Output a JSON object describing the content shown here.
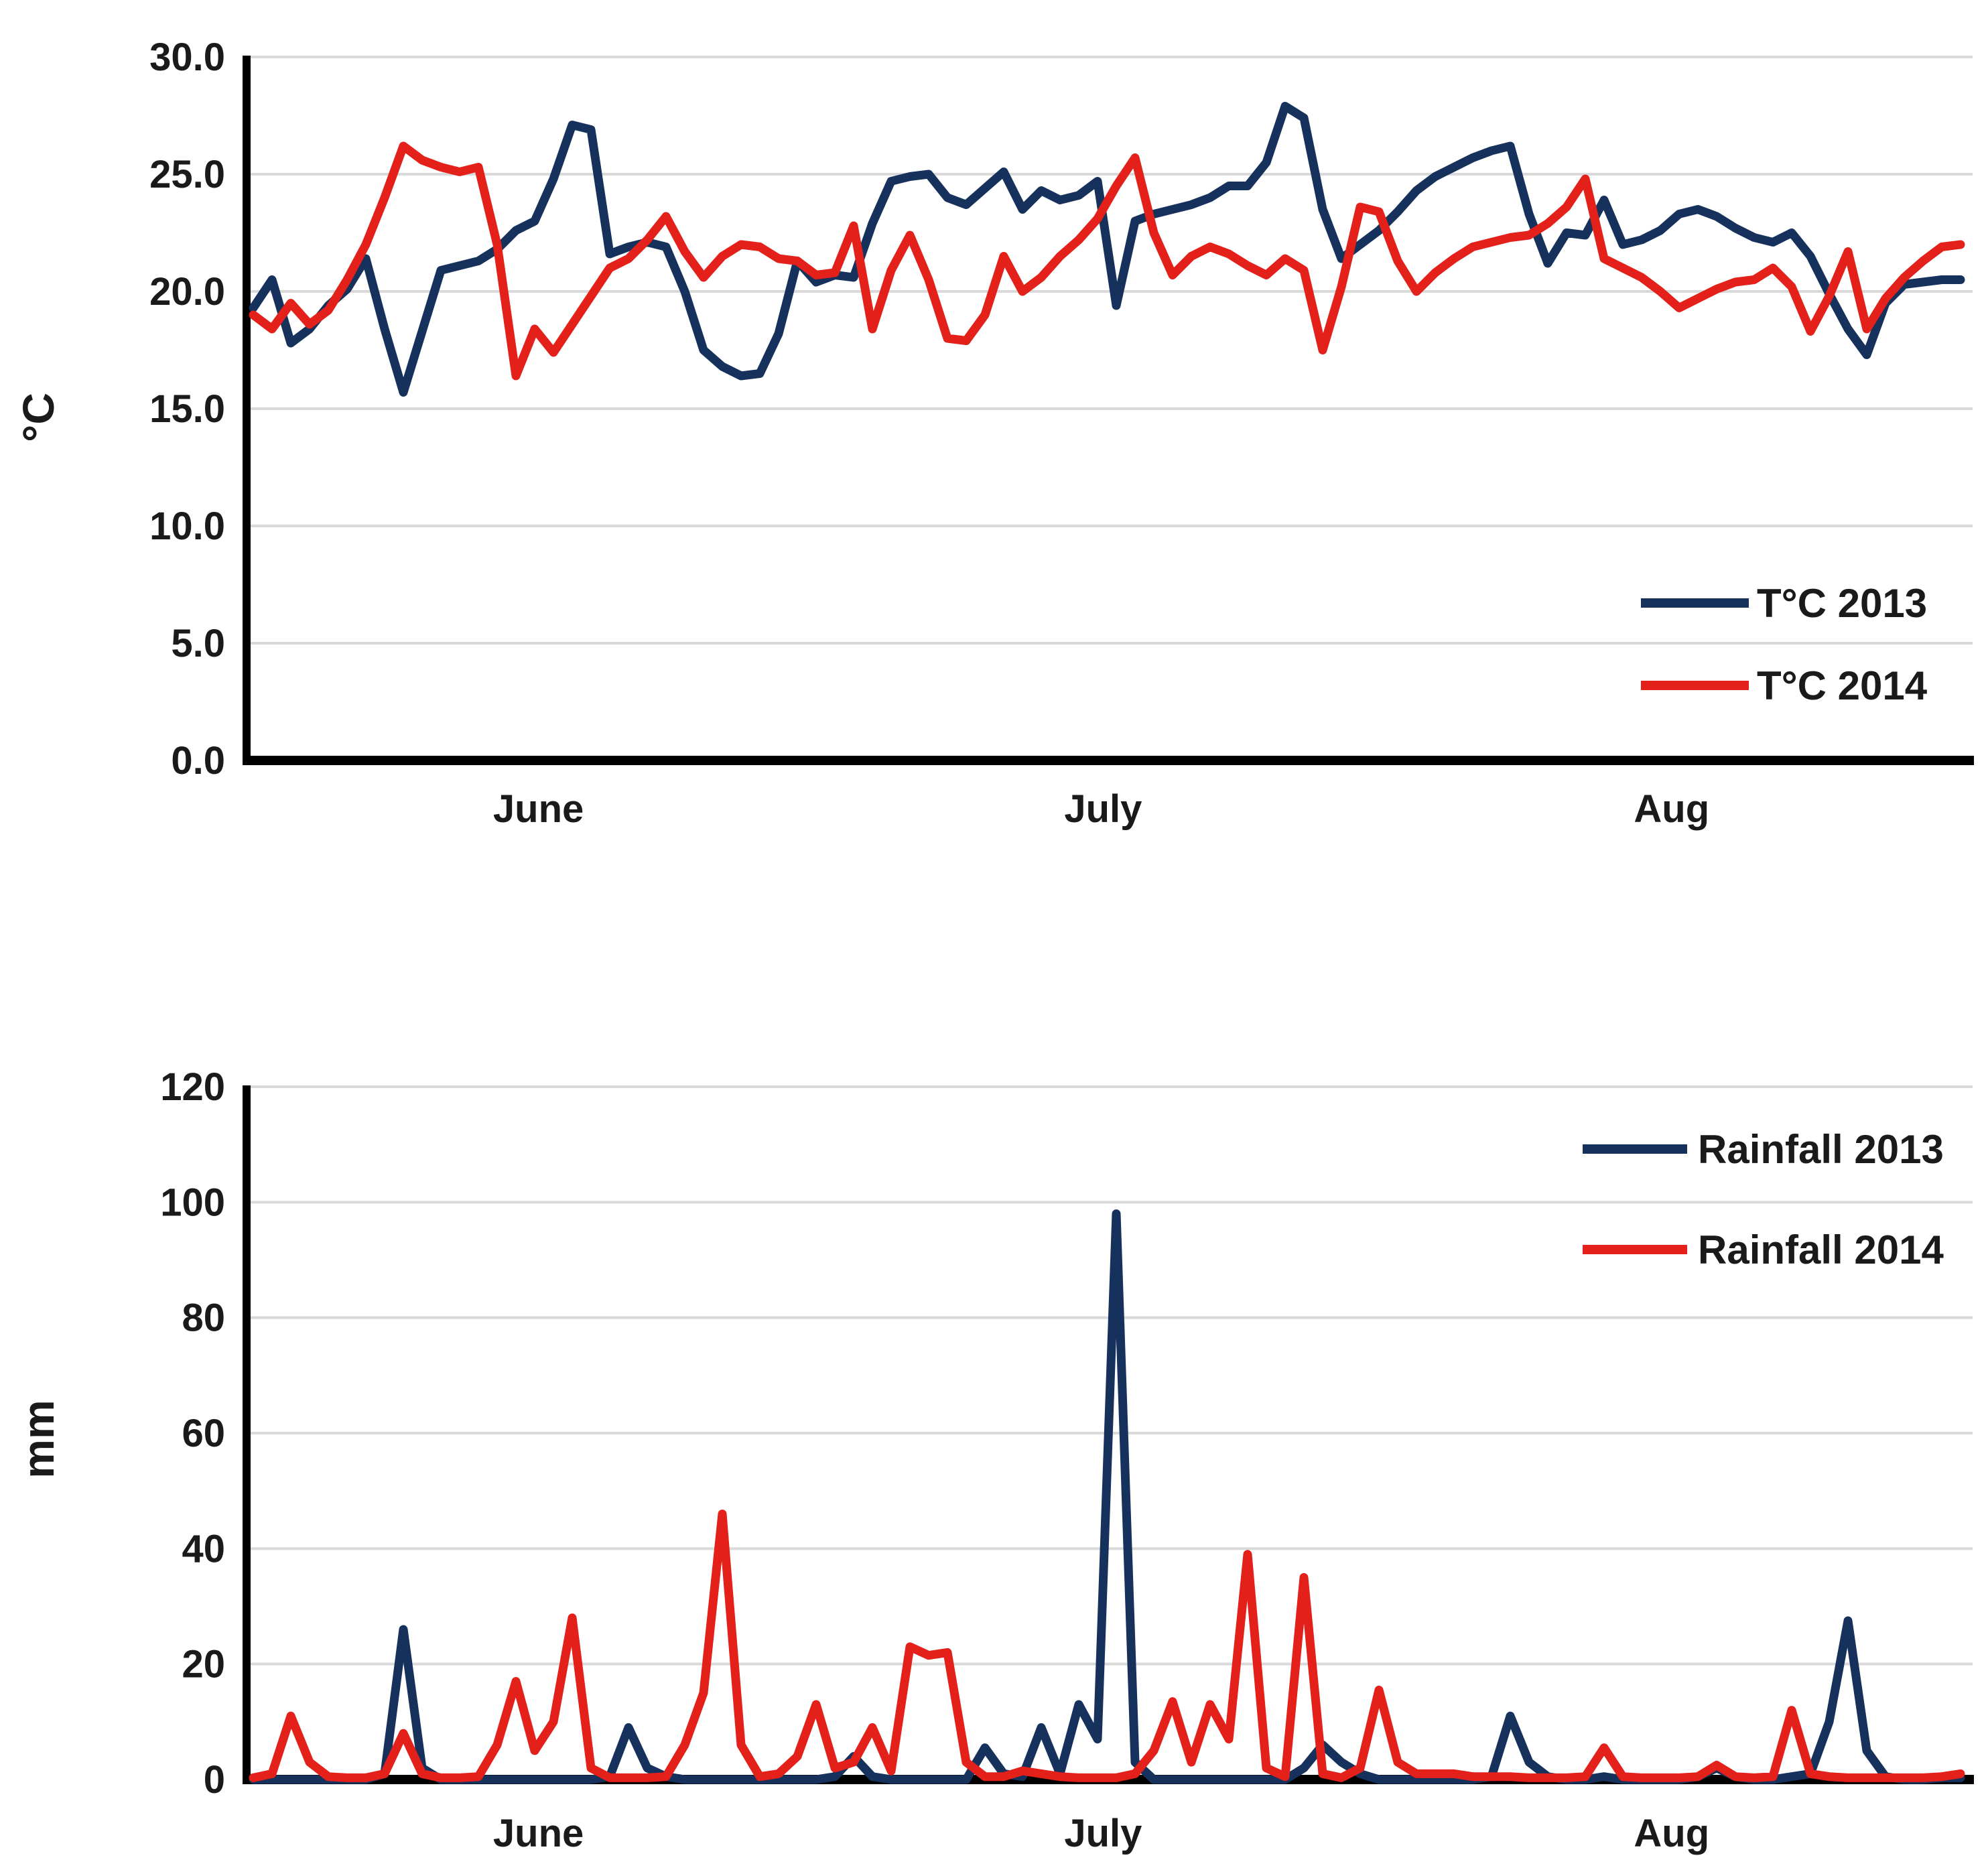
{
  "chart_data": [
    {
      "type": "line",
      "id": "temperature",
      "ylabel": "°C",
      "ylim": [
        0,
        30
      ],
      "ytick_step": 5,
      "ytick_labels": [
        "0.0",
        "5.0",
        "10.0",
        "15.0",
        "20.0",
        "25.0",
        "30.0"
      ],
      "grid": true,
      "legend_position": "inside-right",
      "x": {
        "unit": "day",
        "count": 92,
        "span": "June 1 - Aug 31",
        "month_ticks": [
          {
            "label": "June",
            "day": 15.7
          },
          {
            "label": "July",
            "day": 45.8
          },
          {
            "label": "Aug",
            "day": 76.1
          }
        ]
      },
      "series": [
        {
          "name": "T°C 2013",
          "color": "#16325c",
          "values": [
            19.3,
            20.5,
            17.8,
            18.4,
            19.4,
            20.1,
            21.4,
            18.4,
            15.7,
            18.3,
            20.9,
            21.1,
            21.3,
            21.8,
            22.6,
            23.0,
            24.8,
            27.1,
            26.9,
            21.6,
            21.9,
            22.1,
            21.9,
            20.0,
            17.5,
            16.8,
            16.4,
            16.5,
            18.2,
            21.3,
            20.4,
            20.7,
            20.6,
            22.9,
            24.7,
            24.9,
            25.0,
            24.0,
            23.7,
            24.4,
            25.1,
            23.5,
            24.3,
            23.9,
            24.1,
            24.7,
            19.4,
            23.0,
            23.3,
            23.5,
            23.7,
            24.0,
            24.5,
            24.5,
            25.5,
            27.9,
            27.4,
            23.5,
            21.4,
            22.0,
            22.6,
            23.4,
            24.3,
            24.9,
            25.3,
            25.7,
            26.0,
            26.2,
            23.3,
            21.2,
            22.5,
            22.4,
            23.9,
            22.0,
            22.2,
            22.6,
            23.3,
            23.5,
            23.2,
            22.7,
            22.3,
            22.1,
            22.5,
            21.5,
            19.9,
            18.4,
            17.3,
            19.5,
            20.3,
            20.4,
            20.5,
            20.5
          ]
        },
        {
          "name": "T°C 2014",
          "color": "#e32019",
          "values": [
            19.0,
            18.4,
            19.5,
            18.6,
            19.2,
            20.5,
            22.0,
            24.0,
            26.2,
            25.6,
            25.3,
            25.1,
            25.3,
            22.0,
            16.4,
            18.4,
            17.4,
            18.6,
            19.8,
            21.0,
            21.4,
            22.2,
            23.2,
            21.7,
            20.6,
            21.5,
            22.0,
            21.9,
            21.4,
            21.3,
            20.7,
            20.8,
            22.8,
            18.4,
            20.9,
            22.4,
            20.5,
            18.0,
            17.9,
            19.0,
            21.5,
            20.0,
            20.6,
            21.5,
            22.2,
            23.1,
            24.5,
            25.7,
            22.5,
            20.7,
            21.5,
            21.9,
            21.6,
            21.1,
            20.7,
            21.4,
            20.9,
            17.5,
            20.2,
            23.6,
            23.4,
            21.3,
            20.0,
            20.8,
            21.4,
            21.9,
            22.1,
            22.3,
            22.4,
            22.9,
            23.6,
            24.8,
            21.4,
            21.0,
            20.6,
            20.0,
            19.3,
            19.7,
            20.1,
            20.4,
            20.5,
            21.0,
            20.2,
            18.3,
            19.8,
            21.7,
            18.4,
            19.7,
            20.6,
            21.3,
            21.9,
            22.0
          ]
        }
      ]
    },
    {
      "type": "line",
      "id": "rainfall",
      "ylabel": "mm",
      "ylim": [
        0,
        120
      ],
      "ytick_step": 20,
      "ytick_labels": [
        "0",
        "20",
        "40",
        "60",
        "80",
        "100",
        "120"
      ],
      "grid": true,
      "legend_position": "inside-right-top",
      "x": {
        "unit": "day",
        "count": 92,
        "span": "June 1 - Aug 31",
        "month_ticks": [
          {
            "label": "June",
            "day": 15.7
          },
          {
            "label": "July",
            "day": 45.8
          },
          {
            "label": "Aug",
            "day": 76.1
          }
        ]
      },
      "series": [
        {
          "name": "Rainfall 2013",
          "color": "#16325c",
          "values": [
            0,
            0,
            0,
            0,
            0,
            0,
            0,
            1,
            26,
            2,
            0,
            0,
            0,
            0,
            0,
            0,
            0,
            0,
            0,
            0.5,
            9,
            2,
            0.5,
            0,
            0,
            0,
            0,
            0,
            0,
            0,
            0,
            0.5,
            4,
            0.5,
            0,
            0,
            0,
            0,
            0,
            5.5,
            1,
            0.5,
            9,
            1,
            13,
            7,
            98,
            3,
            0,
            0,
            0,
            0,
            0,
            0,
            0,
            0,
            2,
            6,
            3,
            1,
            0,
            0,
            0,
            0,
            0,
            0,
            0.5,
            11,
            3,
            0.5,
            0,
            0,
            0.5,
            0,
            0,
            0,
            0,
            0.5,
            2,
            0.5,
            0,
            0,
            0.5,
            1,
            10,
            27.5,
            5,
            0.5,
            0,
            0,
            0.3,
            0.3
          ]
        },
        {
          "name": "Rainfall 2014",
          "color": "#e32019",
          "values": [
            0.3,
            1,
            11,
            3,
            0.5,
            0.3,
            0.3,
            1,
            8,
            1,
            0.3,
            0.3,
            0.5,
            6,
            17,
            5,
            10,
            28,
            2,
            0.3,
            0.3,
            0.3,
            0.5,
            6,
            15,
            46,
            6,
            0.5,
            1,
            4,
            13,
            2,
            3,
            9,
            1.5,
            23,
            21.5,
            22,
            3,
            0.5,
            0.5,
            1.5,
            1,
            0.5,
            0.3,
            0.3,
            0.3,
            1,
            5,
            13.5,
            3,
            13,
            7,
            39,
            2,
            0.5,
            35,
            1,
            0.3,
            2,
            15.5,
            3,
            1,
            1,
            1,
            0.5,
            0.5,
            0.5,
            0.3,
            0.3,
            0.3,
            0.5,
            5.5,
            0.5,
            0.3,
            0.3,
            0.3,
            0.5,
            2.5,
            0.5,
            0.3,
            0.5,
            12,
            1,
            0.5,
            0.3,
            0.3,
            0.3,
            0.3,
            0.3,
            0.5,
            1
          ]
        }
      ]
    }
  ],
  "styles": {
    "gridline_color": "#d9d9d9",
    "axis_color": "#000000",
    "text_color": "#1a1a1a"
  }
}
